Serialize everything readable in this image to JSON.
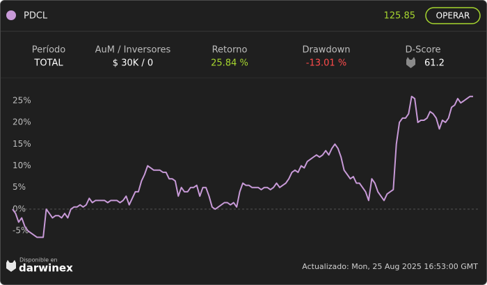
{
  "header": {
    "name": "PDCL",
    "price": "125.85",
    "button": "OPERAR"
  },
  "stats": [
    {
      "label": "Período",
      "value": "TOTAL"
    },
    {
      "label": "AuM / Inversores",
      "value": "$ 30K / 0"
    },
    {
      "label": "Retorno",
      "value": "25.84 %"
    },
    {
      "label": "Drawdown",
      "value": "-13.01 %"
    },
    {
      "label": "D-Score",
      "value": "61.2"
    }
  ],
  "chart_data": {
    "type": "line",
    "color": "#c89ad8",
    "ylim": [
      -11.4,
      29
    ],
    "yticks": [
      {
        "value": -5,
        "label": "-5%"
      },
      {
        "value": 0,
        "label": "0%"
      },
      {
        "value": 5,
        "label": "5%"
      },
      {
        "value": 10,
        "label": "10%"
      },
      {
        "value": 15,
        "label": "15%"
      },
      {
        "value": 20,
        "label": "20%"
      },
      {
        "value": 25,
        "label": "25%"
      }
    ],
    "values": [
      0,
      -1,
      -3,
      -2,
      -4,
      -5,
      -5.5,
      -6,
      -6.5,
      -6.5,
      -6.5,
      0,
      -1,
      -2,
      -1.5,
      -1.5,
      -2,
      -1,
      -2,
      0,
      0.5,
      0.5,
      1,
      0.5,
      1,
      2.5,
      1.5,
      2,
      2,
      2,
      2,
      1.5,
      2,
      2,
      2,
      1.5,
      2,
      3,
      1,
      2.5,
      4,
      4,
      6.5,
      8,
      10,
      9.5,
      9,
      9,
      9,
      8.5,
      8.5,
      7,
      7,
      6.5,
      3,
      5,
      4,
      4,
      5,
      5,
      5.5,
      3,
      5,
      5,
      3,
      0.5,
      0,
      0.5,
      1,
      1.5,
      1.5,
      1,
      1.5,
      0.5,
      4,
      6,
      5.5,
      5.5,
      5,
      5,
      5,
      4.5,
      5,
      5,
      4.5,
      5,
      6,
      5,
      5.5,
      6,
      7,
      8.5,
      9,
      8.5,
      10,
      9.5,
      11,
      11.5,
      12,
      12.5,
      12,
      12.5,
      13.5,
      12.5,
      14,
      15,
      14,
      12,
      9,
      8,
      7,
      7.5,
      6,
      6,
      5,
      4,
      2,
      7,
      6,
      4,
      3,
      2,
      3.5,
      4,
      4.5,
      15,
      20,
      21,
      21,
      22,
      26,
      25.5,
      20,
      20.5,
      20.5,
      21,
      22.5,
      22,
      21,
      18.5,
      20.5,
      20,
      21,
      23.5,
      24,
      25.5,
      24.5,
      25,
      25.5,
      26,
      26
    ]
  },
  "footer": {
    "available": "Disponible en",
    "brand": "darwinex",
    "updated": "Actualizado: Mon, 25 Aug 2025 16:53:00 GMT"
  }
}
